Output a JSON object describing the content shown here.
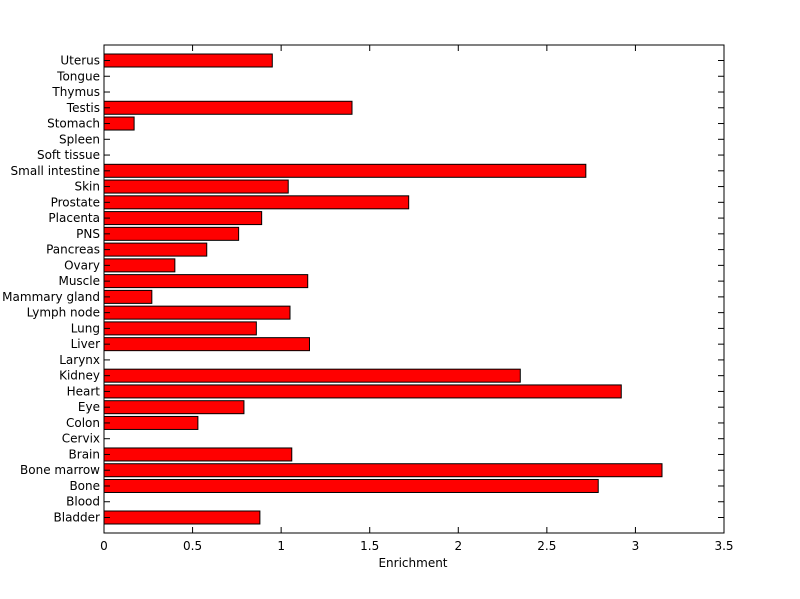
{
  "chart_data": {
    "type": "bar",
    "orientation": "horizontal",
    "categories": [
      "Bladder",
      "Blood",
      "Bone",
      "Bone marrow",
      "Brain",
      "Cervix",
      "Colon",
      "Eye",
      "Heart",
      "Kidney",
      "Larynx",
      "Liver",
      "Lung",
      "Lymph node",
      "Mammary gland",
      "Muscle",
      "Ovary",
      "Pancreas",
      "PNS",
      "Placenta",
      "Prostate",
      "Skin",
      "Small intestine",
      "Soft tissue",
      "Spleen",
      "Stomach",
      "Testis",
      "Thymus",
      "Tongue",
      "Uterus"
    ],
    "values": [
      0.88,
      0,
      2.79,
      3.15,
      1.06,
      0,
      0.53,
      0.79,
      2.92,
      2.35,
      0,
      1.16,
      0.86,
      1.05,
      0.27,
      1.15,
      0.4,
      0.58,
      0.76,
      0.89,
      1.72,
      1.04,
      2.72,
      0,
      0,
      0.17,
      1.4,
      0,
      0,
      0.95
    ],
    "xlabel": "Enrichment",
    "ylabel": "",
    "title": "",
    "xlim": [
      0,
      3.5
    ],
    "xticks": [
      "0",
      "0.5",
      "1",
      "1.5",
      "2",
      "2.5",
      "3",
      "3.5"
    ],
    "grid": false,
    "bar_color": "#ff0000",
    "edge_color": "#000000"
  }
}
